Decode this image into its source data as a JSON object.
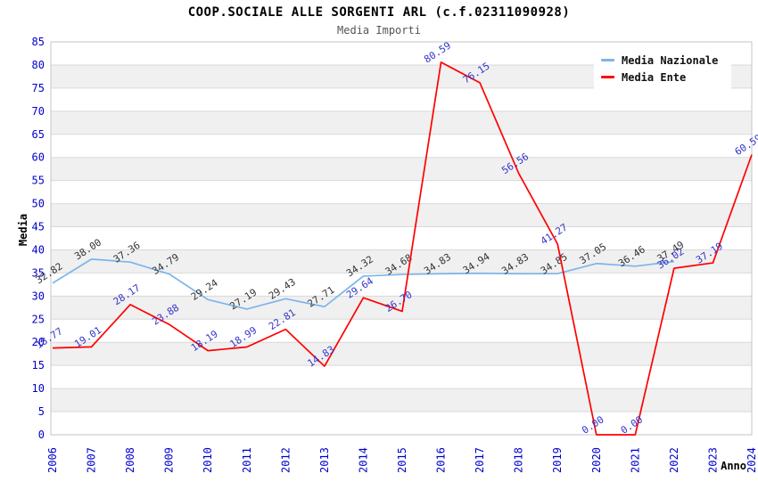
{
  "header": {
    "title": "COOP.SOCIALE ALLE SORGENTI ARL (c.f.02311090928)",
    "subtitle": "Media Importi"
  },
  "colors": {
    "axis_label": "#0000cd",
    "band_gray": "#f0f0f0",
    "band_white": "#ffffff",
    "gridline": "#d9d9d9",
    "plot_border": "#c6c6c6",
    "axis_title": "#000000"
  },
  "chart_data": {
    "type": "line",
    "title": "COOP.SOCIALE ALLE SORGENTI ARL (c.f.02311090928)",
    "subtitle": "Media Importi",
    "xlabel": "Anno",
    "ylabel": "Media",
    "ylim": [
      0,
      85
    ],
    "yticks": [
      0,
      5,
      10,
      15,
      20,
      25,
      30,
      35,
      40,
      45,
      50,
      55,
      60,
      65,
      70,
      75,
      80,
      85
    ],
    "x": [
      2006,
      2007,
      2008,
      2009,
      2010,
      2011,
      2012,
      2013,
      2014,
      2015,
      2016,
      2017,
      2018,
      2019,
      2020,
      2021,
      2022,
      2023,
      2024
    ],
    "grid": "horizontal-alternating-bands",
    "legend_position": "top-right-inside",
    "series": [
      {
        "name": "Media Nazionale",
        "color": "#7cb5ec",
        "label_color": "#333333",
        "values": [
          32.82,
          38.0,
          37.36,
          34.79,
          29.24,
          27.19,
          29.43,
          27.71,
          34.32,
          34.68,
          34.83,
          34.94,
          34.83,
          34.85,
          37.05,
          36.46,
          37.49,
          null,
          null
        ]
      },
      {
        "name": "Media Ente",
        "color": "#ff0000",
        "label_color": "#3333cc",
        "values": [
          18.77,
          19.01,
          28.17,
          23.88,
          18.19,
          18.99,
          22.81,
          14.83,
          29.64,
          26.7,
          80.59,
          76.15,
          56.56,
          41.27,
          0.0,
          0.0,
          36.02,
          37.19,
          60.59
        ]
      }
    ]
  }
}
